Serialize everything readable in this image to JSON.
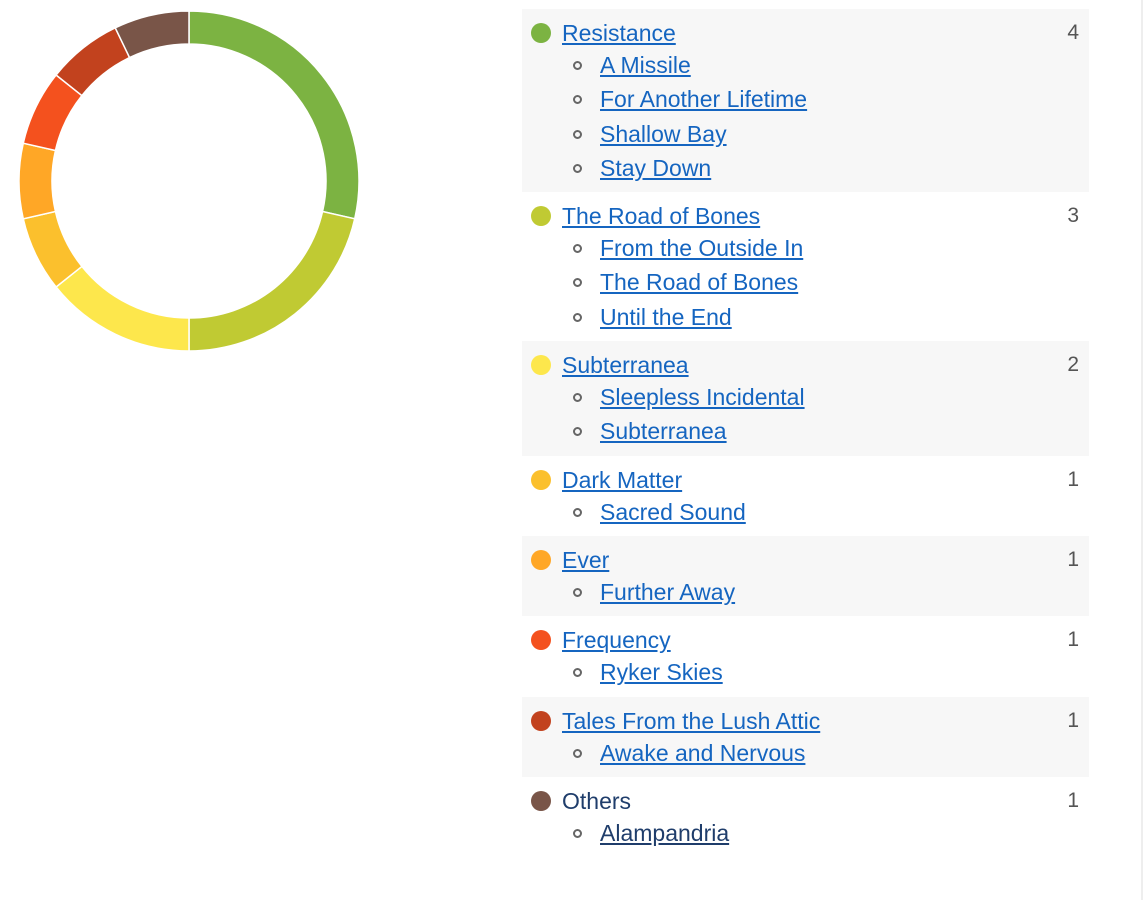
{
  "chart_data": {
    "type": "pie",
    "donut": true,
    "categories": [
      "Resistance",
      "The Road of Bones",
      "Subterranea",
      "Dark Matter",
      "Ever",
      "Frequency",
      "Tales From the Lush Attic",
      "Others"
    ],
    "values": [
      4,
      3,
      2,
      1,
      1,
      1,
      1,
      1
    ],
    "colors": [
      "#7cb342",
      "#c0ca33",
      "#fde74c",
      "#fbc02d",
      "#ffa726",
      "#f4511e",
      "#c2421e",
      "#795548"
    ]
  },
  "legend": {
    "groups": [
      {
        "name": "Resistance",
        "count": "4",
        "color": "#7cb342",
        "linked": true,
        "items": [
          "A Missile",
          "For Another Lifetime",
          "Shallow Bay",
          "Stay Down"
        ]
      },
      {
        "name": "The Road of Bones",
        "count": "3",
        "color": "#c0ca33",
        "linked": true,
        "items": [
          "From the Outside In",
          "The Road of Bones",
          "Until the End"
        ]
      },
      {
        "name": "Subterranea",
        "count": "2",
        "color": "#fde74c",
        "linked": true,
        "items": [
          "Sleepless Incidental",
          "Subterranea"
        ]
      },
      {
        "name": "Dark Matter",
        "count": "1",
        "color": "#fbc02d",
        "linked": true,
        "items": [
          "Sacred Sound"
        ]
      },
      {
        "name": "Ever",
        "count": "1",
        "color": "#ffa726",
        "linked": true,
        "items": [
          "Further Away"
        ]
      },
      {
        "name": "Frequency",
        "count": "1",
        "color": "#f4511e",
        "linked": true,
        "items": [
          "Ryker Skies"
        ]
      },
      {
        "name": "Tales From the Lush Attic",
        "count": "1",
        "color": "#c2421e",
        "linked": true,
        "items": [
          "Awake and Nervous"
        ]
      },
      {
        "name": "Others",
        "count": "1",
        "color": "#795548",
        "linked": false,
        "items": [
          "Alampandria"
        ]
      }
    ]
  }
}
